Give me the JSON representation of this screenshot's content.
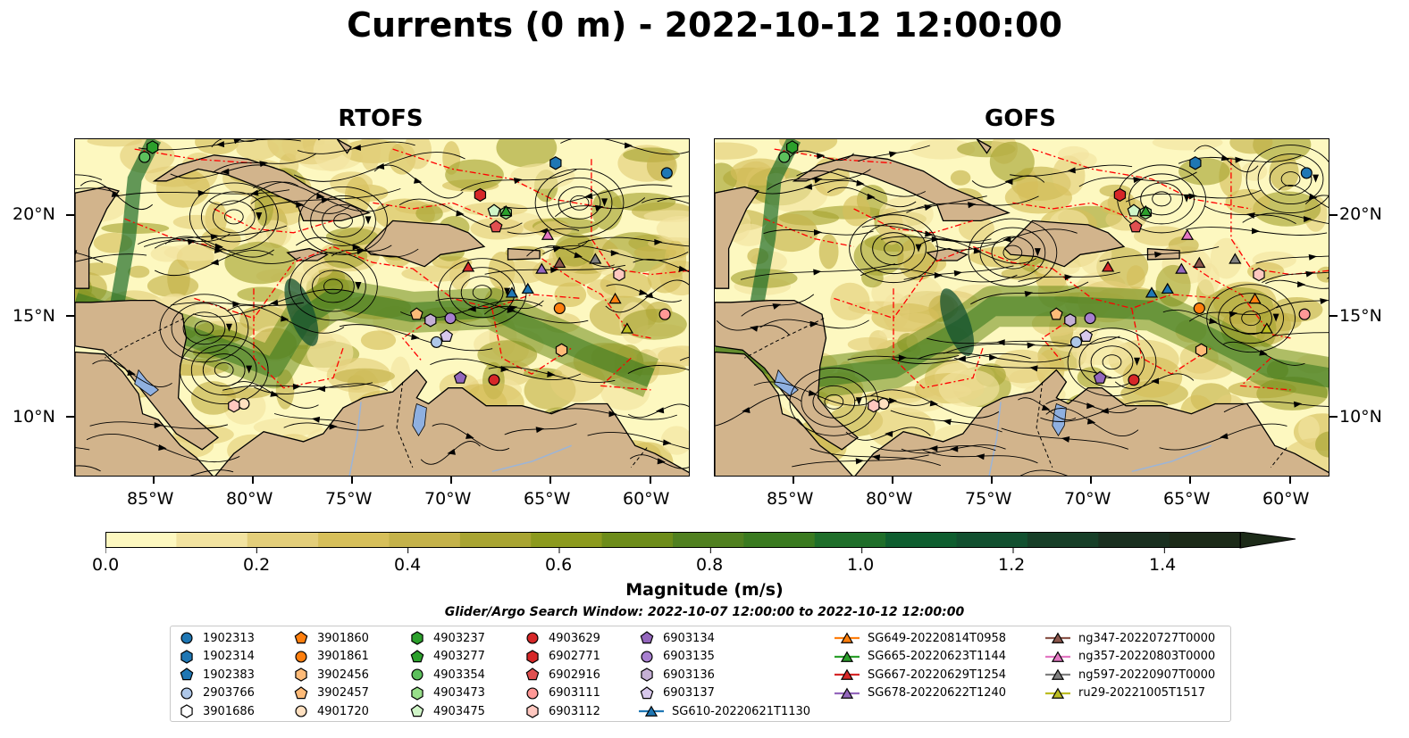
{
  "title": "Currents (0 m) - 2022-10-12 12:00:00",
  "panels": [
    {
      "title": "RTOFS"
    },
    {
      "title": "GOFS"
    }
  ],
  "lat_labels": [
    "20°N",
    "15°N",
    "10°N"
  ],
  "lon_labels": [
    "85°W",
    "80°W",
    "75°W",
    "70°W",
    "65°W",
    "60°W"
  ],
  "map_extent": {
    "lon": [
      -89,
      -58
    ],
    "lat": [
      7,
      24
    ]
  },
  "colors": {
    "land": "#d2b48c",
    "water_low": "#fdf8c0",
    "contour_red": "#ff0000",
    "lake": "#8fb0e0"
  },
  "colorbar": {
    "ticks": [
      "0.0",
      "0.2",
      "0.4",
      "0.6",
      "0.8",
      "1.0",
      "1.2",
      "1.4"
    ],
    "range": [
      0,
      1.5
    ],
    "colors": [
      "#fdf8c0",
      "#f2e3a0",
      "#e3ce7a",
      "#d6bf5a",
      "#c4b24a",
      "#a8a432",
      "#8c9a1e",
      "#6d8c1a",
      "#508020",
      "#3a7a20",
      "#1f6e2a",
      "#0f5e30",
      "#125030",
      "#173f28",
      "#1a3020",
      "#1c2a18"
    ],
    "label": "Magnitude (m/s)"
  },
  "search_window": "Glider/Argo Search Window: 2022-10-07 12:00:00 to 2022-10-12 12:00:00",
  "legend": [
    {
      "label": "1902313",
      "marker": "circle",
      "color": "#1f77b4"
    },
    {
      "label": "1902314",
      "marker": "hexagon",
      "color": "#1f77b4"
    },
    {
      "label": "1902383",
      "marker": "pentagon",
      "color": "#1f77b4"
    },
    {
      "label": "2903766",
      "marker": "circle",
      "color": "#aec7e8"
    },
    {
      "label": "3901686",
      "marker": "hexagon",
      "color": "#ffffff"
    },
    {
      "label": "3901860",
      "marker": "pentagon",
      "color": "#ff7f0e"
    },
    {
      "label": "3901861",
      "marker": "circle",
      "color": "#ff7f0e"
    },
    {
      "label": "3902456",
      "marker": "hexagon",
      "color": "#ffbb78"
    },
    {
      "label": "3902457",
      "marker": "pentagon",
      "color": "#ffbb78"
    },
    {
      "label": "4901720",
      "marker": "circle",
      "color": "#ffe0c0"
    },
    {
      "label": "4903237",
      "marker": "hexagon",
      "color": "#2ca02c"
    },
    {
      "label": "4903277",
      "marker": "pentagon",
      "color": "#2ca02c"
    },
    {
      "label": "4903354",
      "marker": "circle",
      "color": "#5cc05c"
    },
    {
      "label": "4903473",
      "marker": "hexagon",
      "color": "#98df8a"
    },
    {
      "label": "4903475",
      "marker": "pentagon",
      "color": "#d0f5c8"
    },
    {
      "label": "4903629",
      "marker": "circle",
      "color": "#d62728"
    },
    {
      "label": "6902771",
      "marker": "hexagon",
      "color": "#d62728"
    },
    {
      "label": "6902916",
      "marker": "pentagon",
      "color": "#e05050"
    },
    {
      "label": "6903111",
      "marker": "circle",
      "color": "#ff9896"
    },
    {
      "label": "6903112",
      "marker": "hexagon",
      "color": "#ffc8c0"
    },
    {
      "label": "6903134",
      "marker": "pentagon",
      "color": "#9467bd"
    },
    {
      "label": "6903135",
      "marker": "circle",
      "color": "#a880d0"
    },
    {
      "label": "6903136",
      "marker": "hexagon",
      "color": "#c5b0d5"
    },
    {
      "label": "6903137",
      "marker": "pentagon",
      "color": "#d8c8ec"
    },
    {
      "label": "SG610-20220621T1130",
      "marker": "triangle-line",
      "color": "#1f77b4"
    },
    {
      "label": "SG649-20220814T0958",
      "marker": "triangle-line",
      "color": "#ff7f0e"
    },
    {
      "label": "SG665-20220623T1144",
      "marker": "triangle-line",
      "color": "#2ca02c"
    },
    {
      "label": "SG667-20220629T1254",
      "marker": "triangle-line",
      "color": "#d62728"
    },
    {
      "label": "SG678-20220622T1240",
      "marker": "triangle-line",
      "color": "#9467bd"
    },
    {
      "label": "ng347-20220727T0000",
      "marker": "triangle-line",
      "color": "#8c564b"
    },
    {
      "label": "ng357-20220803T0000",
      "marker": "triangle-line",
      "color": "#e377c2"
    },
    {
      "label": "ng597-20220907T0000",
      "marker": "triangle-line",
      "color": "#7f7f7f"
    },
    {
      "label": "ru29-20221005T1517",
      "marker": "triangle-line",
      "color": "#bcbd22"
    }
  ],
  "observations": [
    {
      "id": "1902313",
      "lon": -59.2,
      "lat": 22.3
    },
    {
      "id": "1902314",
      "lon": -64.8,
      "lat": 22.8
    },
    {
      "id": "2903766",
      "lon": -70.8,
      "lat": 13.8
    },
    {
      "id": "3901861",
      "lon": -64.6,
      "lat": 15.5
    },
    {
      "id": "3902456",
      "lon": -64.5,
      "lat": 13.4
    },
    {
      "id": "3902457",
      "lon": -71.8,
      "lat": 15.2
    },
    {
      "id": "4901720",
      "lon": -80.5,
      "lat": 10.7
    },
    {
      "id": "4903237",
      "lon": -85.1,
      "lat": 23.6
    },
    {
      "id": "4903354",
      "lon": -85.5,
      "lat": 23.1
    },
    {
      "id": "4903473",
      "lon": -67.3,
      "lat": 20.3
    },
    {
      "id": "4903475",
      "lon": -67.9,
      "lat": 20.4
    },
    {
      "id": "4903629",
      "lon": -67.9,
      "lat": 11.9
    },
    {
      "id": "6902771",
      "lon": -68.6,
      "lat": 21.2
    },
    {
      "id": "6902916",
      "lon": -67.8,
      "lat": 19.6
    },
    {
      "id": "6903111",
      "lon": -59.3,
      "lat": 15.2
    },
    {
      "id": "6903112",
      "lon": -81.0,
      "lat": 10.6
    },
    {
      "id": "6903134",
      "lon": -69.6,
      "lat": 12.0
    },
    {
      "id": "6903135",
      "lon": -70.1,
      "lat": 15.0
    },
    {
      "id": "6903136",
      "lon": -71.1,
      "lat": 14.9
    },
    {
      "id": "6903137",
      "lon": -70.3,
      "lat": 14.1
    },
    {
      "id": "6903112b",
      "lon": -61.6,
      "lat": 17.2
    },
    {
      "id": "SG610-20220621T1130",
      "lon": -66.2,
      "lat": 16.5
    },
    {
      "id": "SG610-20220621T1130b",
      "lon": -67.0,
      "lat": 16.3
    },
    {
      "id": "SG649-20220814T0958",
      "lon": -61.8,
      "lat": 16.0
    },
    {
      "id": "SG665-20220623T1144",
      "lon": -67.3,
      "lat": 20.4
    },
    {
      "id": "SG667-20220629T1254",
      "lon": -69.2,
      "lat": 17.6
    },
    {
      "id": "SG678-20220622T1240",
      "lon": -65.5,
      "lat": 17.5
    },
    {
      "id": "ng347-20220727T0000",
      "lon": -64.6,
      "lat": 17.8
    },
    {
      "id": "ng357-20220803T0000",
      "lon": -65.2,
      "lat": 19.2
    },
    {
      "id": "ng597-20220907T0000",
      "lon": -62.8,
      "lat": 18.0
    },
    {
      "id": "ru29-20221005T1517",
      "lon": -61.2,
      "lat": 14.5
    }
  ]
}
